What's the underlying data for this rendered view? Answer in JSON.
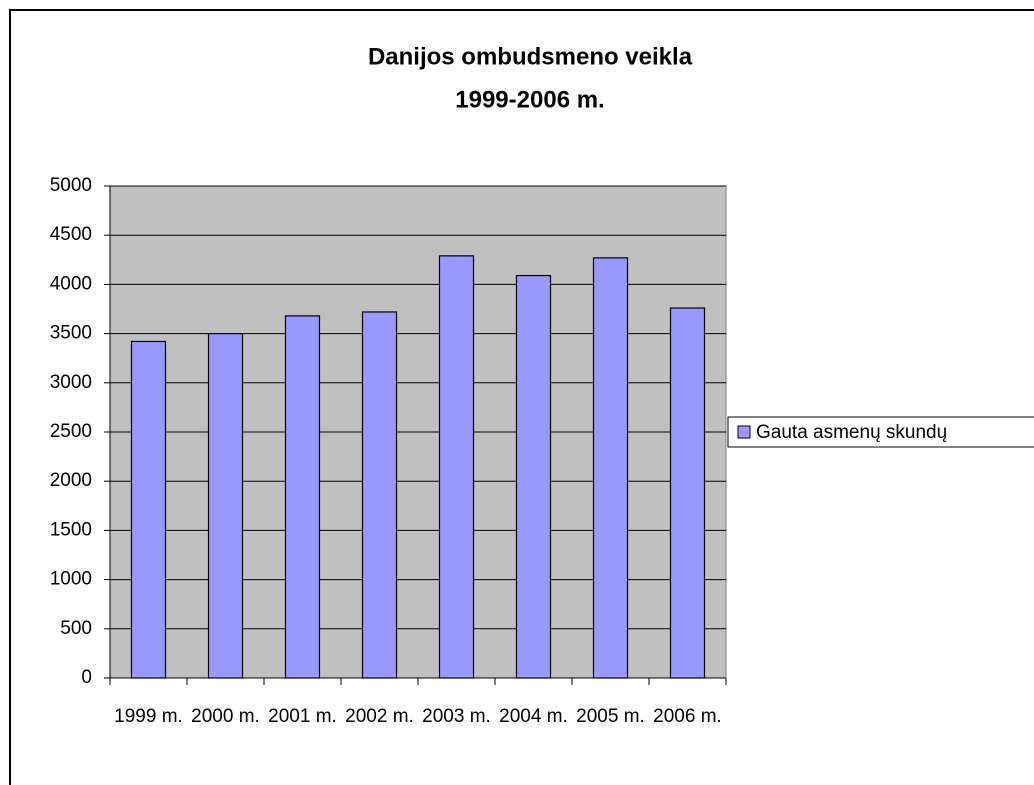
{
  "chart_data": {
    "type": "bar",
    "title": [
      "Danijos ombudsmeno veikla",
      "1999-2006 m."
    ],
    "categories": [
      "1999 m.",
      "2000 m.",
      "2001 m.",
      "2002 m.",
      "2003 m.",
      "2004 m.",
      "2005 m.",
      "2006 m."
    ],
    "series": [
      {
        "name": "Gauta asmenų skundų",
        "color": "#9999ff",
        "values": [
          3420,
          3500,
          3680,
          3720,
          4290,
          4090,
          4270,
          3760
        ]
      }
    ],
    "ylim": [
      0,
      5000
    ],
    "yticks": [
      0,
      500,
      1000,
      1500,
      2000,
      2500,
      3000,
      3500,
      4000,
      4500,
      5000
    ],
    "grid": true,
    "legend": "right"
  }
}
